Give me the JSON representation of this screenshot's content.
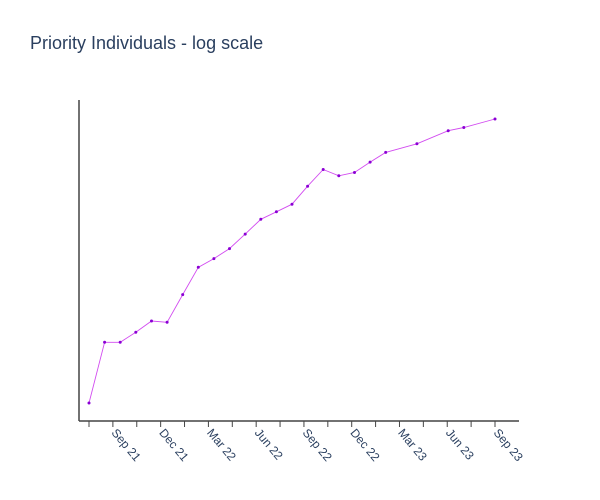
{
  "chart_data": {
    "type": "line",
    "title": "Priority Individuals - log scale",
    "xlabel": "",
    "ylabel": "",
    "y_scale": "log",
    "grid": false,
    "legend": "none",
    "x_tick_labels": [
      "",
      "Sep 21",
      "",
      "Dec 21",
      "",
      "Mar 22",
      "",
      "Jun 22",
      "",
      "Sep 22",
      "",
      "Dec 22",
      "",
      "Mar 23",
      "",
      "Jun 23",
      "",
      "Sep 23"
    ],
    "x": [
      "2021-07",
      "2021-08",
      "2021-09",
      "2021-10",
      "2021-11",
      "2021-12",
      "2022-01",
      "2022-02",
      "2022-03",
      "2022-04",
      "2022-05",
      "2022-06",
      "2022-07",
      "2022-08",
      "2022-09",
      "2022-10",
      "2022-11",
      "2022-12",
      "2023-01",
      "2023-02",
      "2023-04",
      "2023-06",
      "2023-07",
      "2023-09"
    ],
    "series": [
      {
        "color": "#d24cf0",
        "marker_color": "#8a00d4",
        "values": [
          1.2,
          3.3,
          3.3,
          3.9,
          4.7,
          4.6,
          7.3,
          11.5,
          13.3,
          15.7,
          20.0,
          25.6,
          29.0,
          32.9,
          44.4,
          58.6,
          52.8,
          55.8,
          66.3,
          78.0,
          90.0,
          112.0,
          118.0,
          136.0
        ]
      }
    ]
  }
}
